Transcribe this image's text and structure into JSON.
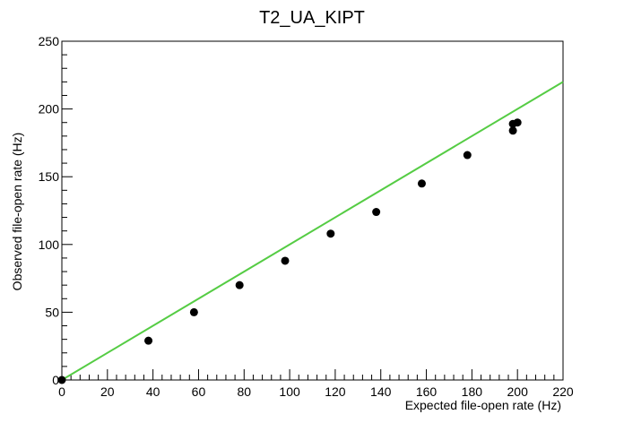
{
  "chart_data": {
    "type": "scatter",
    "title": "T2_UA_KIPT",
    "xlabel": "Expected file-open rate (Hz)",
    "ylabel": "Observed file-open rate (Hz)",
    "xlim": [
      0,
      220
    ],
    "ylim": [
      0,
      250
    ],
    "x_ticks": [
      0,
      20,
      40,
      60,
      80,
      100,
      120,
      140,
      160,
      180,
      200,
      220
    ],
    "y_ticks": [
      0,
      50,
      100,
      150,
      200,
      250
    ],
    "grid": false,
    "points": [
      {
        "x": 0,
        "y": 0
      },
      {
        "x": 38,
        "y": 29
      },
      {
        "x": 58,
        "y": 50
      },
      {
        "x": 78,
        "y": 70
      },
      {
        "x": 98,
        "y": 88
      },
      {
        "x": 118,
        "y": 108
      },
      {
        "x": 138,
        "y": 124
      },
      {
        "x": 158,
        "y": 145
      },
      {
        "x": 178,
        "y": 166
      },
      {
        "x": 198,
        "y": 184
      },
      {
        "x": 198,
        "y": 189
      },
      {
        "x": 200,
        "y": 190
      }
    ],
    "reference_line": {
      "x": [
        0,
        220
      ],
      "y": [
        0,
        220
      ],
      "color": "#55cc44"
    },
    "marker_color": "#000000"
  }
}
